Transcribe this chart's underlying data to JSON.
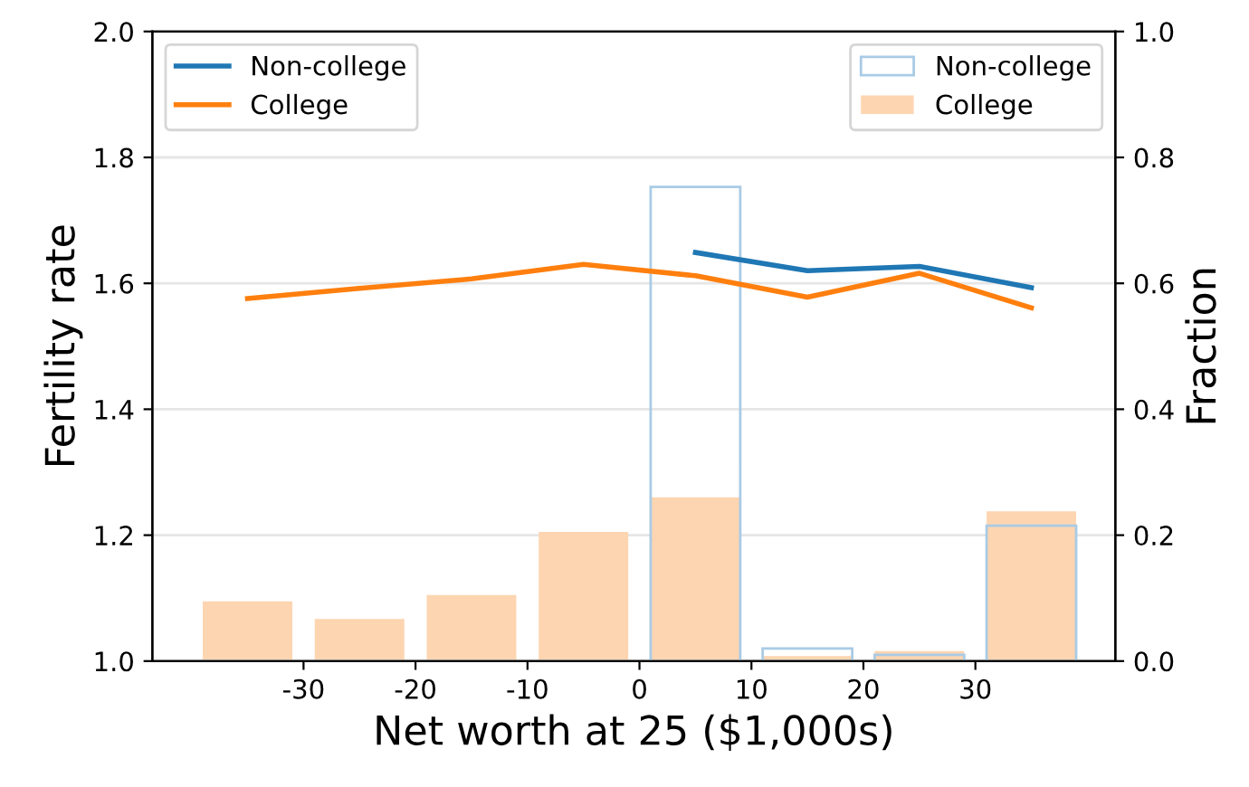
{
  "chart_data": {
    "type": "line",
    "xlabel": "Net worth at 25 ($1,000s)",
    "ylabel": "Fertility rate",
    "y2label": "Fraction",
    "xlim": [
      -43.5,
      42.5
    ],
    "xticks": [
      -30,
      -20,
      -10,
      0,
      10,
      20,
      30
    ],
    "ylim": [
      1.0,
      2.0
    ],
    "yticks": [
      {
        "value": 1,
        "label": "1.0"
      },
      1.2,
      1.4,
      1.6,
      1.8,
      {
        "value": 2,
        "label": "2.0"
      }
    ],
    "y2lim": [
      0.0,
      1.0
    ],
    "y2ticks": [
      {
        "value": 0,
        "label": "0.0"
      },
      0.2,
      0.4,
      0.6,
      0.8,
      {
        "value": 1,
        "label": "1.0"
      }
    ],
    "bins": [
      -40,
      -30,
      -20,
      -10,
      0,
      10,
      20,
      30,
      40
    ],
    "grid": "y",
    "legend": "top",
    "series": [
      {
        "name": "Non-college",
        "color": "#1f77b4",
        "x": [
          5,
          15,
          25,
          35
        ],
        "values": [
          1.649,
          1.62,
          1.627,
          1.593
        ]
      },
      {
        "name": "College",
        "color": "#ff7f0e",
        "x": [
          -35,
          -25,
          -15,
          -5,
          5,
          15,
          25,
          35
        ],
        "values": [
          1.576,
          1.592,
          1.607,
          1.63,
          1.612,
          1.578,
          1.616,
          1.561
        ]
      },
      {
        "name": "Non-college",
        "type": "histogram",
        "axis": "y2",
        "color": "#a9cbe5",
        "values": [
          0,
          0,
          0,
          0,
          0.753,
          0.02,
          0.01,
          0.215
        ]
      },
      {
        "name": "College",
        "type": "histogram",
        "axis": "y2",
        "color": "#fdd5b1",
        "values": [
          0.095,
          0.067,
          0.105,
          0.205,
          0.26,
          0.008,
          0.016,
          0.238
        ]
      }
    ]
  }
}
